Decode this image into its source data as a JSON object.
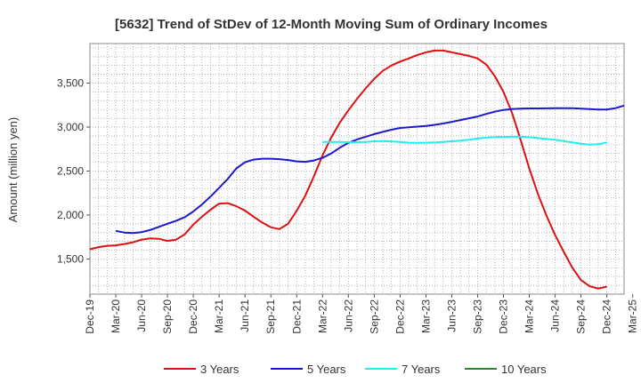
{
  "chart_data": {
    "type": "line",
    "title": "[5632]  Trend of StDev of 12-Month Moving Sum of Ordinary Incomes",
    "xlabel": "",
    "ylabel": "Amount (million yen)",
    "ylim": [
      1100,
      3950
    ],
    "yticks": [
      1500,
      2000,
      2500,
      3000,
      3500
    ],
    "ytick_labels": [
      "1,500",
      "2,000",
      "2,500",
      "3,000",
      "3,500"
    ],
    "x_start": "Dec-19",
    "x_count": 63,
    "xtick_labels": [
      "Dec-19",
      "Mar-20",
      "Jun-20",
      "Sep-20",
      "Dec-20",
      "Mar-21",
      "Jun-21",
      "Sep-21",
      "Dec-21",
      "Mar-22",
      "Jun-22",
      "Sep-22",
      "Dec-22",
      "Mar-23",
      "Jun-23",
      "Sep-23",
      "Dec-23",
      "Mar-24",
      "Jun-24",
      "Sep-24",
      "Dec-24",
      "Mar-25"
    ],
    "grid": true,
    "legend_position": "bottom",
    "series": [
      {
        "name": "3 Years",
        "color": "#dd1111",
        "start_index": 0,
        "values": [
          1610,
          1635,
          1650,
          1655,
          1670,
          1690,
          1720,
          1735,
          1730,
          1705,
          1720,
          1780,
          1890,
          1980,
          2060,
          2130,
          2135,
          2100,
          2050,
          1980,
          1915,
          1860,
          1840,
          1900,
          2050,
          2220,
          2440,
          2680,
          2880,
          3050,
          3190,
          3320,
          3440,
          3550,
          3640,
          3700,
          3745,
          3780,
          3820,
          3850,
          3870,
          3870,
          3850,
          3830,
          3810,
          3780,
          3710,
          3580,
          3400,
          3160,
          2850,
          2530,
          2240,
          1990,
          1770,
          1580,
          1400,
          1260,
          1190,
          1165,
          1185
        ]
      },
      {
        "name": "5 Years",
        "color": "#1a1acc",
        "start_index": 3,
        "values": [
          1820,
          1800,
          1795,
          1805,
          1830,
          1865,
          1900,
          1935,
          1975,
          2040,
          2120,
          2210,
          2310,
          2410,
          2530,
          2600,
          2630,
          2640,
          2640,
          2635,
          2625,
          2610,
          2605,
          2620,
          2650,
          2700,
          2765,
          2820,
          2860,
          2890,
          2920,
          2945,
          2970,
          2990,
          2998,
          3005,
          3012,
          3025,
          3040,
          3060,
          3080,
          3100,
          3120,
          3150,
          3175,
          3195,
          3205,
          3210,
          3212,
          3212,
          3213,
          3214,
          3215,
          3214,
          3210,
          3205,
          3200,
          3200,
          3215,
          3245
        ]
      },
      {
        "name": "7 Years",
        "color": "#22eeee",
        "start_index": 27,
        "values": [
          2830,
          2830,
          2830,
          2828,
          2828,
          2830,
          2838,
          2840,
          2837,
          2830,
          2822,
          2820,
          2822,
          2825,
          2830,
          2838,
          2845,
          2855,
          2870,
          2880,
          2885,
          2888,
          2890,
          2890,
          2885,
          2875,
          2865,
          2855,
          2840,
          2825,
          2810,
          2800,
          2805,
          2825
        ]
      },
      {
        "name": "10 Years",
        "color": "#228822",
        "start_index": 0,
        "values": []
      }
    ]
  }
}
